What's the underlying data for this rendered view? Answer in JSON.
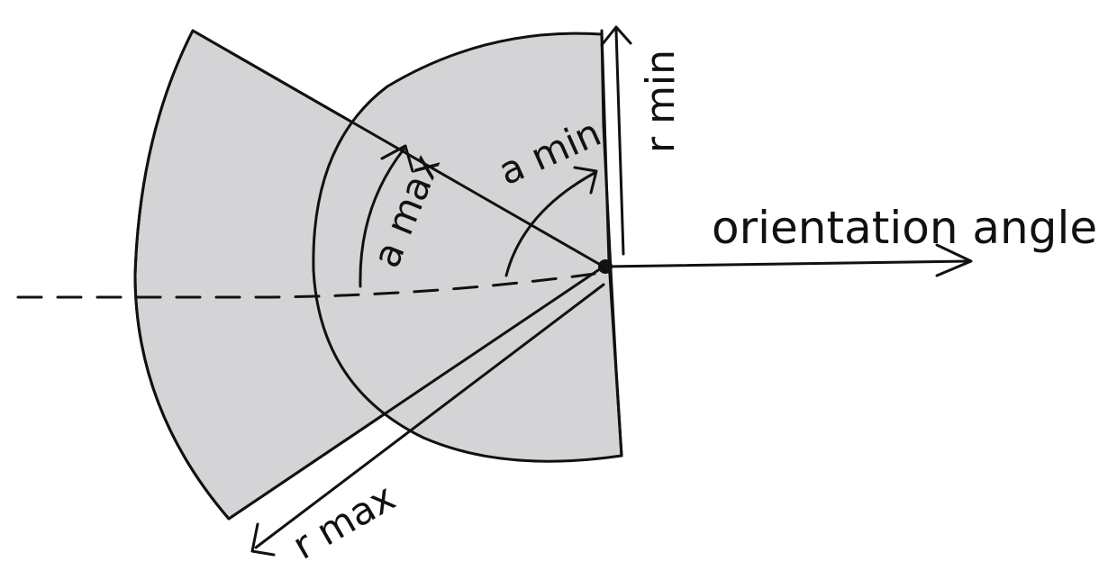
{
  "labels": {
    "r_min": "r min",
    "a_min": "a min",
    "a_max": "a max",
    "orientation_angle": "orientation angle",
    "r_max": "r max"
  },
  "colors": {
    "fill": "#d4d4d6",
    "stroke": "#111111",
    "background": "#ffffff"
  }
}
